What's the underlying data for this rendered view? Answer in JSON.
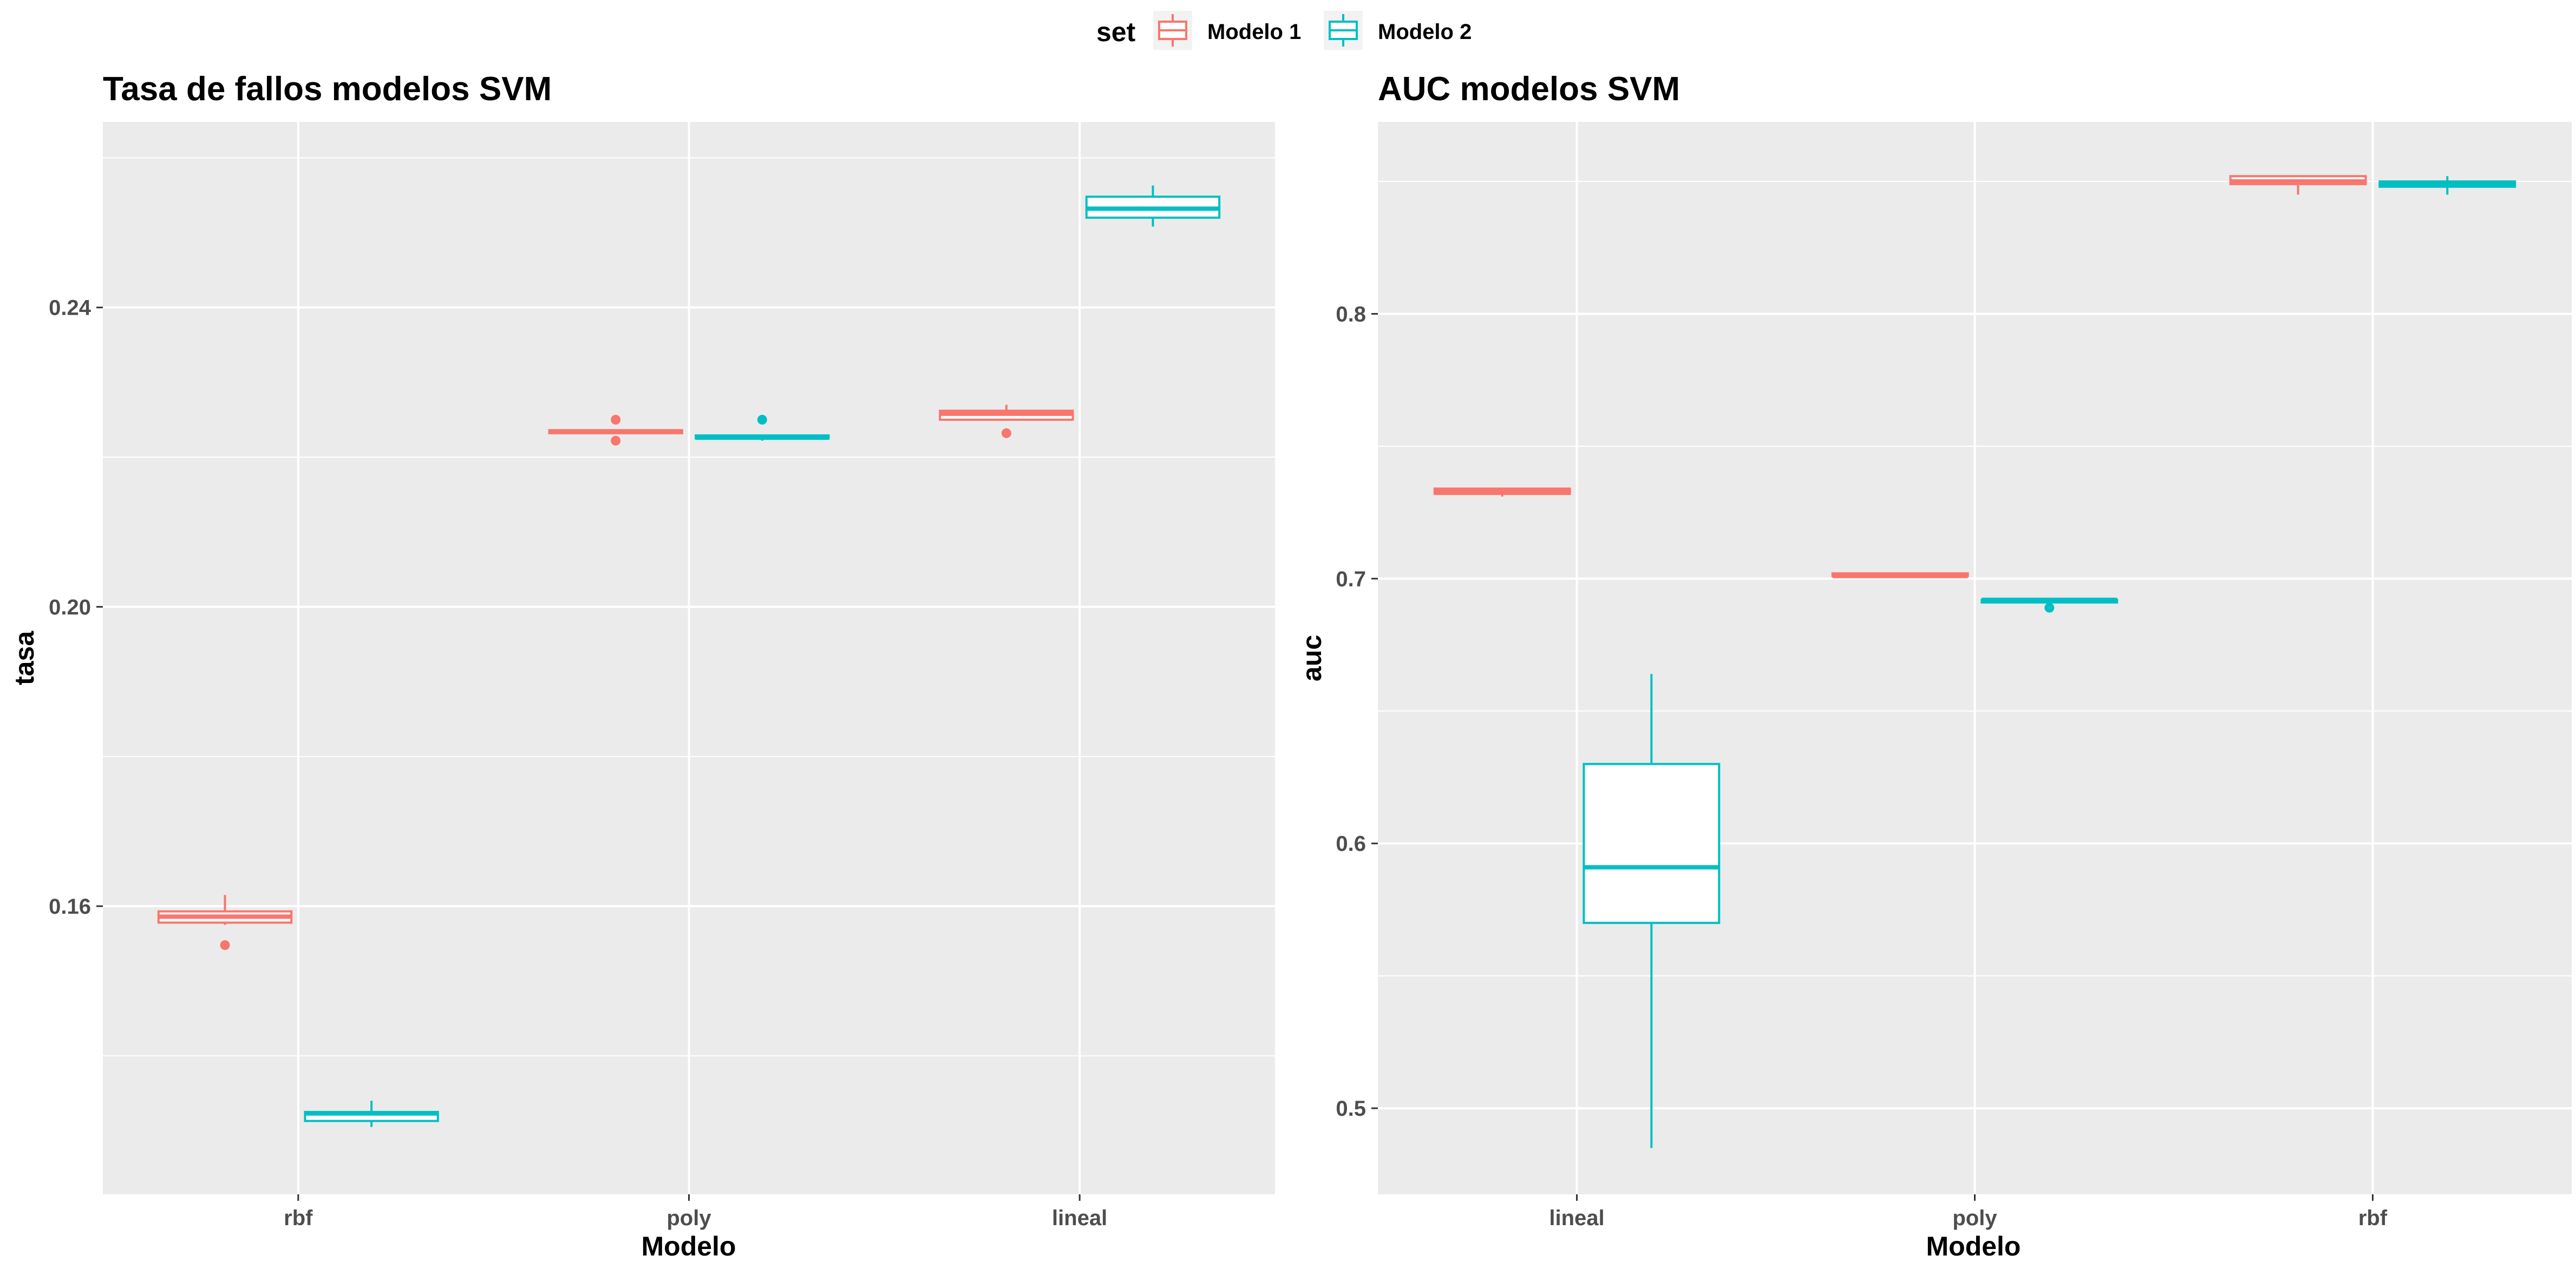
{
  "legend": {
    "title": "set",
    "entries": [
      {
        "label": "Modelo 1",
        "color": "#F8766D"
      },
      {
        "label": "Modelo 2",
        "color": "#00BFC4"
      }
    ]
  },
  "chart_data": [
    {
      "type": "box",
      "title": "Tasa de fallos modelos SVM",
      "xlabel": "Modelo",
      "ylabel": "tasa",
      "categories": [
        "rbf",
        "poly",
        "lineal"
      ],
      "ylim": [
        0.1215,
        0.2648
      ],
      "yticks": [
        0.16,
        0.2,
        0.24
      ],
      "ytick_labels": [
        "0.16",
        "0.20",
        "0.24"
      ],
      "grid": true,
      "series": [
        {
          "name": "Modelo 1",
          "color": "#F8766D",
          "boxes": [
            {
              "category": "rbf",
              "lower": 0.1575,
              "q1": 0.1578,
              "median": 0.1586,
              "q3": 0.1593,
              "upper": 0.1615,
              "outliers": [
                0.1548
              ]
            },
            {
              "category": "poly",
              "lower": 0.2232,
              "q1": 0.2232,
              "median": 0.2234,
              "q3": 0.2236,
              "upper": 0.2236,
              "outliers": [
                0.225,
                0.2222
              ]
            },
            {
              "category": "lineal",
              "lower": 0.225,
              "q1": 0.225,
              "median": 0.2258,
              "q3": 0.2262,
              "upper": 0.227,
              "outliers": [
                0.2232
              ]
            }
          ]
        },
        {
          "name": "Modelo 2",
          "color": "#00BFC4",
          "boxes": [
            {
              "category": "rbf",
              "lower": 0.1305,
              "q1": 0.1313,
              "median": 0.1323,
              "q3": 0.1325,
              "upper": 0.134,
              "outliers": []
            },
            {
              "category": "poly",
              "lower": 0.2222,
              "q1": 0.2225,
              "median": 0.2226,
              "q3": 0.2229,
              "upper": 0.2229,
              "outliers": [
                0.225
              ]
            },
            {
              "category": "lineal",
              "lower": 0.2508,
              "q1": 0.252,
              "median": 0.2532,
              "q3": 0.2548,
              "upper": 0.2563,
              "outliers": []
            }
          ]
        }
      ]
    },
    {
      "type": "box",
      "title": "AUC modelos SVM",
      "xlabel": "Modelo",
      "ylabel": "auc",
      "categories": [
        "lineal",
        "poly",
        "rbf"
      ],
      "ylim": [
        0.4675,
        0.8725
      ],
      "yticks": [
        0.5,
        0.6,
        0.7,
        0.8
      ],
      "ytick_labels": [
        "0.5",
        "0.6",
        "0.7",
        "0.8"
      ],
      "grid": true,
      "series": [
        {
          "name": "Modelo 1",
          "color": "#F8766D",
          "boxes": [
            {
              "category": "lineal",
              "lower": 0.731,
              "q1": 0.732,
              "median": 0.733,
              "q3": 0.734,
              "upper": 0.734,
              "outliers": []
            },
            {
              "category": "poly",
              "lower": 0.701,
              "q1": 0.701,
              "median": 0.701,
              "q3": 0.702,
              "upper": 0.702,
              "outliers": []
            },
            {
              "category": "rbf",
              "lower": 0.845,
              "q1": 0.849,
              "median": 0.85,
              "q3": 0.852,
              "upper": 0.852,
              "outliers": []
            }
          ]
        },
        {
          "name": "Modelo 2",
          "color": "#00BFC4",
          "boxes": [
            {
              "category": "lineal",
              "lower": 0.485,
              "q1": 0.57,
              "median": 0.591,
              "q3": 0.63,
              "upper": 0.664,
              "outliers": []
            },
            {
              "category": "poly",
              "lower": 0.691,
              "q1": 0.691,
              "median": 0.692,
              "q3": 0.692,
              "upper": 0.692,
              "outliers": [
                0.689
              ]
            },
            {
              "category": "rbf",
              "lower": 0.845,
              "q1": 0.848,
              "median": 0.849,
              "q3": 0.85,
              "upper": 0.852,
              "outliers": []
            }
          ]
        }
      ]
    }
  ]
}
